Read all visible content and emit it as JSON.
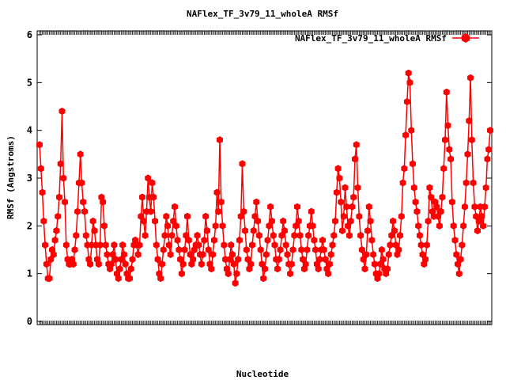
{
  "chart_data": {
    "type": "line",
    "title": "NAFlex_TF_3v79_11_wholeA RMSf",
    "xlabel": "Nucleotide",
    "ylabel": "RMSf (Angstroms)",
    "ylim": [
      0,
      6
    ],
    "yticks": [
      "0",
      "1",
      "2",
      "3",
      "4",
      "5",
      "6"
    ],
    "legend_position": "top-right",
    "grid": false,
    "series": [
      {
        "name": "NAFlex_TF_3v79_11_wholeA RMSf",
        "color": "#ff0000",
        "marker": "filled-hexagon",
        "values": [
          3.7,
          3.2,
          2.7,
          2.1,
          1.6,
          1.2,
          0.9,
          0.9,
          1.3,
          1.5,
          1.4,
          1.7,
          1.9,
          2.2,
          2.6,
          3.3,
          4.4,
          3.0,
          2.5,
          1.6,
          1.3,
          1.2,
          1.2,
          1.3,
          1.2,
          1.5,
          1.8,
          2.3,
          2.9,
          3.5,
          2.9,
          2.5,
          2.3,
          1.8,
          1.6,
          1.3,
          1.2,
          1.6,
          2.1,
          1.9,
          1.6,
          1.3,
          1.2,
          1.6,
          2.6,
          2.5,
          2.0,
          1.6,
          1.4,
          1.2,
          1.1,
          1.2,
          1.4,
          1.6,
          1.3,
          1.0,
          0.9,
          1.1,
          1.3,
          1.6,
          1.4,
          1.2,
          1.0,
          0.9,
          0.9,
          1.1,
          1.3,
          1.6,
          1.7,
          1.6,
          1.4,
          1.6,
          2.2,
          2.6,
          2.1,
          1.8,
          2.3,
          3.0,
          2.6,
          2.3,
          2.9,
          2.6,
          2.1,
          1.6,
          1.3,
          1.0,
          0.9,
          1.2,
          1.5,
          1.8,
          2.2,
          2.0,
          1.6,
          1.4,
          1.8,
          2.1,
          2.4,
          2.0,
          1.7,
          1.5,
          1.3,
          1.0,
          1.2,
          1.5,
          1.8,
          2.2,
          1.7,
          1.4,
          1.2,
          1.3,
          1.5,
          1.6,
          1.8,
          1.6,
          1.4,
          1.2,
          1.4,
          1.7,
          2.2,
          1.9,
          1.5,
          1.2,
          1.1,
          1.4,
          1.7,
          2.0,
          2.7,
          2.3,
          3.8,
          2.5,
          2.0,
          1.6,
          1.3,
          1.1,
          1.0,
          1.3,
          1.6,
          1.4,
          1.2,
          0.8,
          1.0,
          1.3,
          1.7,
          2.2,
          3.3,
          2.3,
          1.9,
          1.5,
          1.3,
          1.1,
          1.2,
          1.6,
          1.9,
          2.2,
          2.5,
          2.1,
          1.8,
          1.5,
          1.2,
          0.9,
          1.1,
          1.4,
          1.7,
          2.0,
          2.4,
          2.1,
          1.8,
          1.6,
          1.3,
          1.1,
          1.3,
          1.5,
          1.8,
          2.1,
          1.9,
          1.6,
          1.4,
          1.2,
          1.0,
          1.2,
          1.5,
          1.8,
          2.0,
          2.4,
          2.1,
          1.8,
          1.5,
          1.3,
          1.1,
          1.2,
          1.5,
          1.8,
          2.0,
          2.3,
          2.0,
          1.7,
          1.5,
          1.2,
          1.1,
          1.3,
          1.5,
          1.7,
          1.5,
          1.3,
          1.1,
          1.0,
          1.2,
          1.4,
          1.6,
          1.8,
          2.1,
          2.7,
          3.2,
          3.0,
          2.5,
          1.9,
          2.2,
          2.8,
          2.4,
          2.0,
          1.8,
          2.1,
          2.4,
          2.6,
          3.4,
          3.7,
          2.8,
          2.2,
          1.8,
          1.5,
          1.3,
          1.1,
          1.4,
          1.9,
          2.4,
          2.1,
          1.7,
          1.4,
          1.2,
          1.0,
          0.9,
          1.0,
          1.2,
          1.5,
          1.3,
          1.1,
          1.0,
          1.1,
          1.4,
          1.6,
          1.8,
          2.1,
          1.9,
          1.6,
          1.4,
          1.5,
          1.8,
          2.2,
          2.9,
          3.2,
          3.9,
          4.6,
          5.2,
          5.0,
          4.0,
          3.3,
          2.8,
          2.5,
          2.3,
          2.0,
          1.8,
          1.6,
          1.4,
          1.2,
          1.3,
          1.6,
          2.1,
          2.8,
          2.6,
          2.3,
          2.2,
          2.5,
          2.4,
          2.2,
          2.0,
          2.3,
          2.6,
          3.2,
          3.8,
          4.8,
          4.1,
          3.6,
          3.4,
          2.5,
          2.0,
          1.7,
          1.4,
          1.2,
          1.0,
          1.3,
          1.6,
          2.0,
          2.4,
          2.9,
          3.5,
          4.2,
          5.1,
          3.8,
          2.9,
          2.4,
          2.2,
          1.9,
          2.1,
          2.4,
          2.2,
          2.0,
          2.4,
          2.8,
          3.4,
          3.6,
          4.0
        ]
      }
    ]
  }
}
